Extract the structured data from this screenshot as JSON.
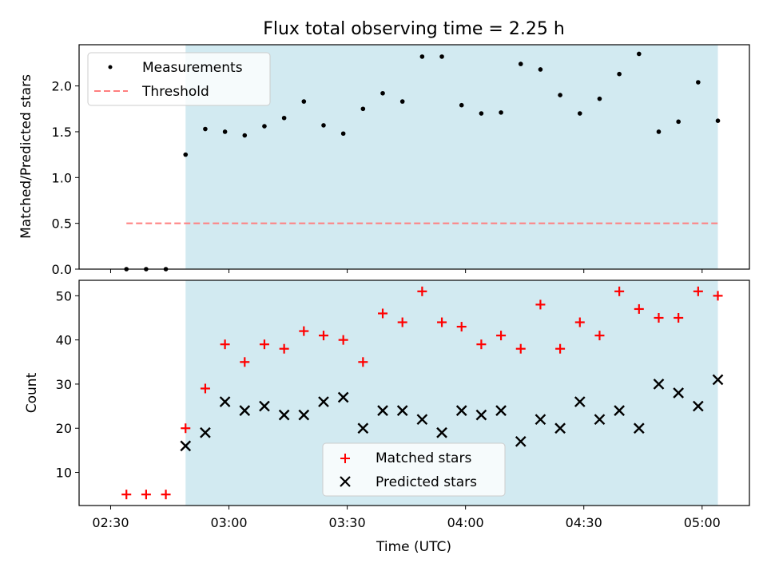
{
  "chart_data": {
    "title": "Flux total observing time = 2.25 h",
    "x": [
      "02:34",
      "02:39",
      "02:44",
      "02:49",
      "02:54",
      "02:59",
      "03:04",
      "03:09",
      "03:14",
      "03:19",
      "03:24",
      "03:29",
      "03:34",
      "03:39",
      "03:44",
      "03:49",
      "03:54",
      "03:59",
      "04:04",
      "04:09",
      "04:14",
      "04:19",
      "04:24",
      "04:29",
      "04:34",
      "04:39",
      "04:44",
      "04:49",
      "04:54",
      "04:59",
      "05:04"
    ],
    "xlabel": "Time (UTC)",
    "xticks": [
      "02:30",
      "03:00",
      "03:30",
      "04:00",
      "04:30",
      "05:00"
    ],
    "shaded_span": [
      "02:49",
      "05:04"
    ],
    "shade_color": "#add8e6",
    "panels": [
      {
        "type": "scatter",
        "ylabel": "Matched/Predicted stars",
        "ylim": [
          0,
          2.45
        ],
        "yticks": [
          "0.0",
          "0.5",
          "1.0",
          "1.5",
          "2.0"
        ],
        "legend_position": "upper-left",
        "series": [
          {
            "name": "Measurements",
            "marker": "dot",
            "color": "#000000",
            "values": [
              0,
              0,
              0,
              1.25,
              1.53,
              1.5,
              1.46,
              1.56,
              1.65,
              1.83,
              1.57,
              1.48,
              1.75,
              1.92,
              1.83,
              2.32,
              2.32,
              1.79,
              1.7,
              1.71,
              2.24,
              2.18,
              1.9,
              1.7,
              1.86,
              2.13,
              2.35,
              1.5,
              1.61,
              2.04,
              1.62
            ]
          }
        ],
        "threshold": {
          "name": "Threshold",
          "value": 0.5,
          "from": "02:34",
          "to": "05:04",
          "color": "#ff7f7f"
        }
      },
      {
        "type": "scatter",
        "ylabel": "Count",
        "ylim": [
          2.5,
          53.5
        ],
        "yticks": [
          "10",
          "20",
          "30",
          "40",
          "50"
        ],
        "legend_position": "lower-center",
        "series": [
          {
            "name": "Matched stars",
            "marker": "plus",
            "color": "#ff0000",
            "values": [
              5,
              5,
              5,
              20,
              29,
              39,
              35,
              39,
              38,
              42,
              41,
              40,
              35,
              46,
              44,
              51,
              44,
              43,
              39,
              41,
              38,
              48,
              38,
              44,
              41,
              51,
              47,
              45,
              45,
              51,
              50
            ]
          },
          {
            "name": "Predicted stars",
            "marker": "x",
            "color": "#000000",
            "values": [
              null,
              null,
              null,
              16,
              19,
              26,
              24,
              25,
              23,
              23,
              26,
              27,
              20,
              24,
              24,
              22,
              19,
              24,
              23,
              24,
              17,
              22,
              20,
              26,
              22,
              24,
              20,
              30,
              28,
              25,
              31
            ]
          }
        ]
      }
    ]
  }
}
